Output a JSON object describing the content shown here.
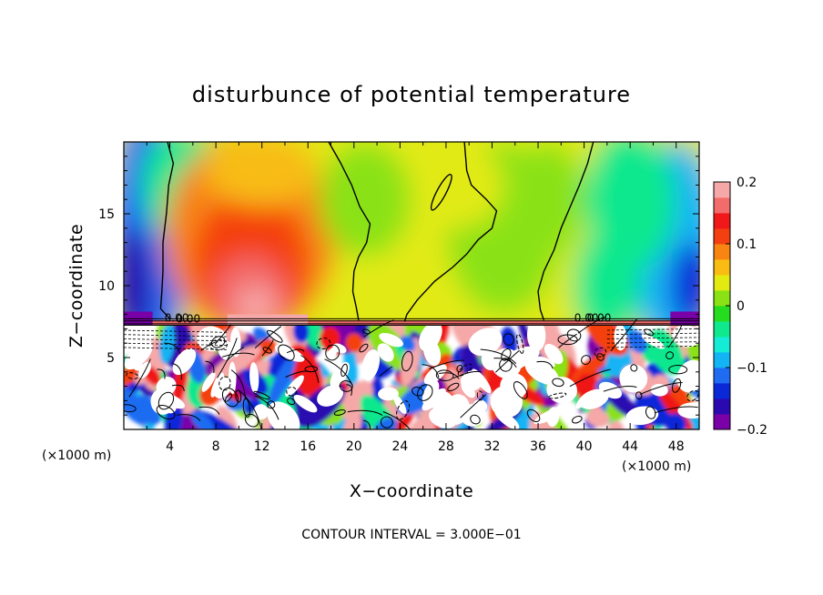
{
  "chart_data": {
    "type": "heatmap",
    "title": "disturbunce of potential temperature",
    "xlabel": "X−coordinate",
    "ylabel": "Z−coordinate",
    "x_unit_left": "(×1000 m)",
    "x_unit_right": "(×1000 m)",
    "xlim": [
      0,
      50
    ],
    "ylim": [
      0,
      20
    ],
    "x_ticks": [
      4,
      8,
      12,
      16,
      20,
      24,
      28,
      32,
      36,
      40,
      44,
      48
    ],
    "x_tick_labels": [
      "4",
      "8",
      "12",
      "16",
      "20",
      "24",
      "28",
      "32",
      "36",
      "40",
      "44",
      "48"
    ],
    "y_ticks": [
      5,
      10,
      15
    ],
    "y_tick_labels": [
      "5",
      "10",
      "15"
    ],
    "colorbar": {
      "range": [
        -0.2,
        0.2
      ],
      "ticks": [
        0.2,
        0.1,
        0,
        -0.1,
        -0.2
      ],
      "tick_labels": [
        "0.2",
        "0.1",
        "0",
        "−0.1",
        "−0.2"
      ],
      "colors": [
        "#7a00a8",
        "#2a0ab0",
        "#0a28d8",
        "#1f6cf2",
        "#12b4f4",
        "#14ecd6",
        "#10e88e",
        "#26dc1e",
        "#8ae214",
        "#e2ea12",
        "#f8bc12",
        "#f88412",
        "#f44010",
        "#f01818",
        "#f26c6c",
        "#f6a8a8"
      ]
    },
    "contour_interval_text": "CONTOUR INTERVAL = 3.000E−01",
    "contour_labels": [
      "0.00",
      "0.00",
      "0.00",
      "0.00"
    ],
    "grid": false
  }
}
